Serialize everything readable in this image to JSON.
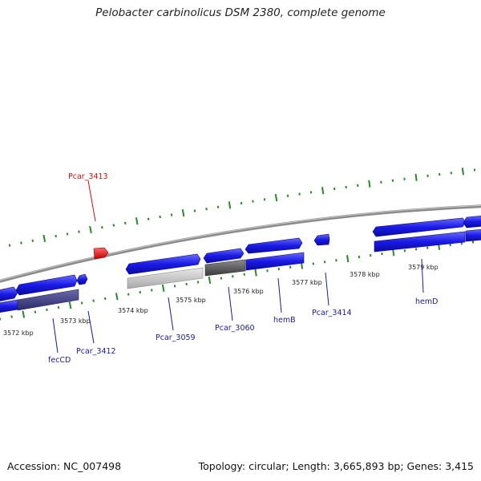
{
  "title": "Pelobacter carbinolicus DSM 2380, complete genome",
  "footer": {
    "accession": "Accession: NC_007498",
    "summary": "Topology: circular; Length: 3,665,893 bp; Genes: 3,415"
  },
  "colors": {
    "forward_gene": "#1a1ae6",
    "reverse_gene": "#1a1ae6",
    "highlight_gene": "#e01010",
    "rna_light": "#c8c8c8",
    "rna_dark": "#6a6a6a",
    "pseudo": "#4a4a8a",
    "tick": "#2a8a2a",
    "backbone": "#8c8c8c",
    "gene_label": "#1a1a99",
    "highlight_label": "#cc1111"
  },
  "kbp_labels": [
    "3572 kbp",
    "3573 kbp",
    "3574 kbp",
    "3575 kbp",
    "3576 kbp",
    "3577 kbp",
    "3578 kbp",
    "3579 kbp"
  ],
  "gene_labels": [
    {
      "id": "pcar-3413",
      "text": "Pcar_3413",
      "highlight": true
    },
    {
      "id": "feccd",
      "text": "fecCD",
      "highlight": false
    },
    {
      "id": "pcar-3412",
      "text": "Pcar_3412",
      "highlight": false
    },
    {
      "id": "pcar-3059",
      "text": "Pcar_3059",
      "highlight": false
    },
    {
      "id": "pcar-3060",
      "text": "Pcar_3060",
      "highlight": false
    },
    {
      "id": "hemb",
      "text": "hemB",
      "highlight": false
    },
    {
      "id": "pcar-3414",
      "text": "Pcar_3414",
      "highlight": false
    },
    {
      "id": "hemd",
      "text": "hemD",
      "highlight": false
    }
  ]
}
